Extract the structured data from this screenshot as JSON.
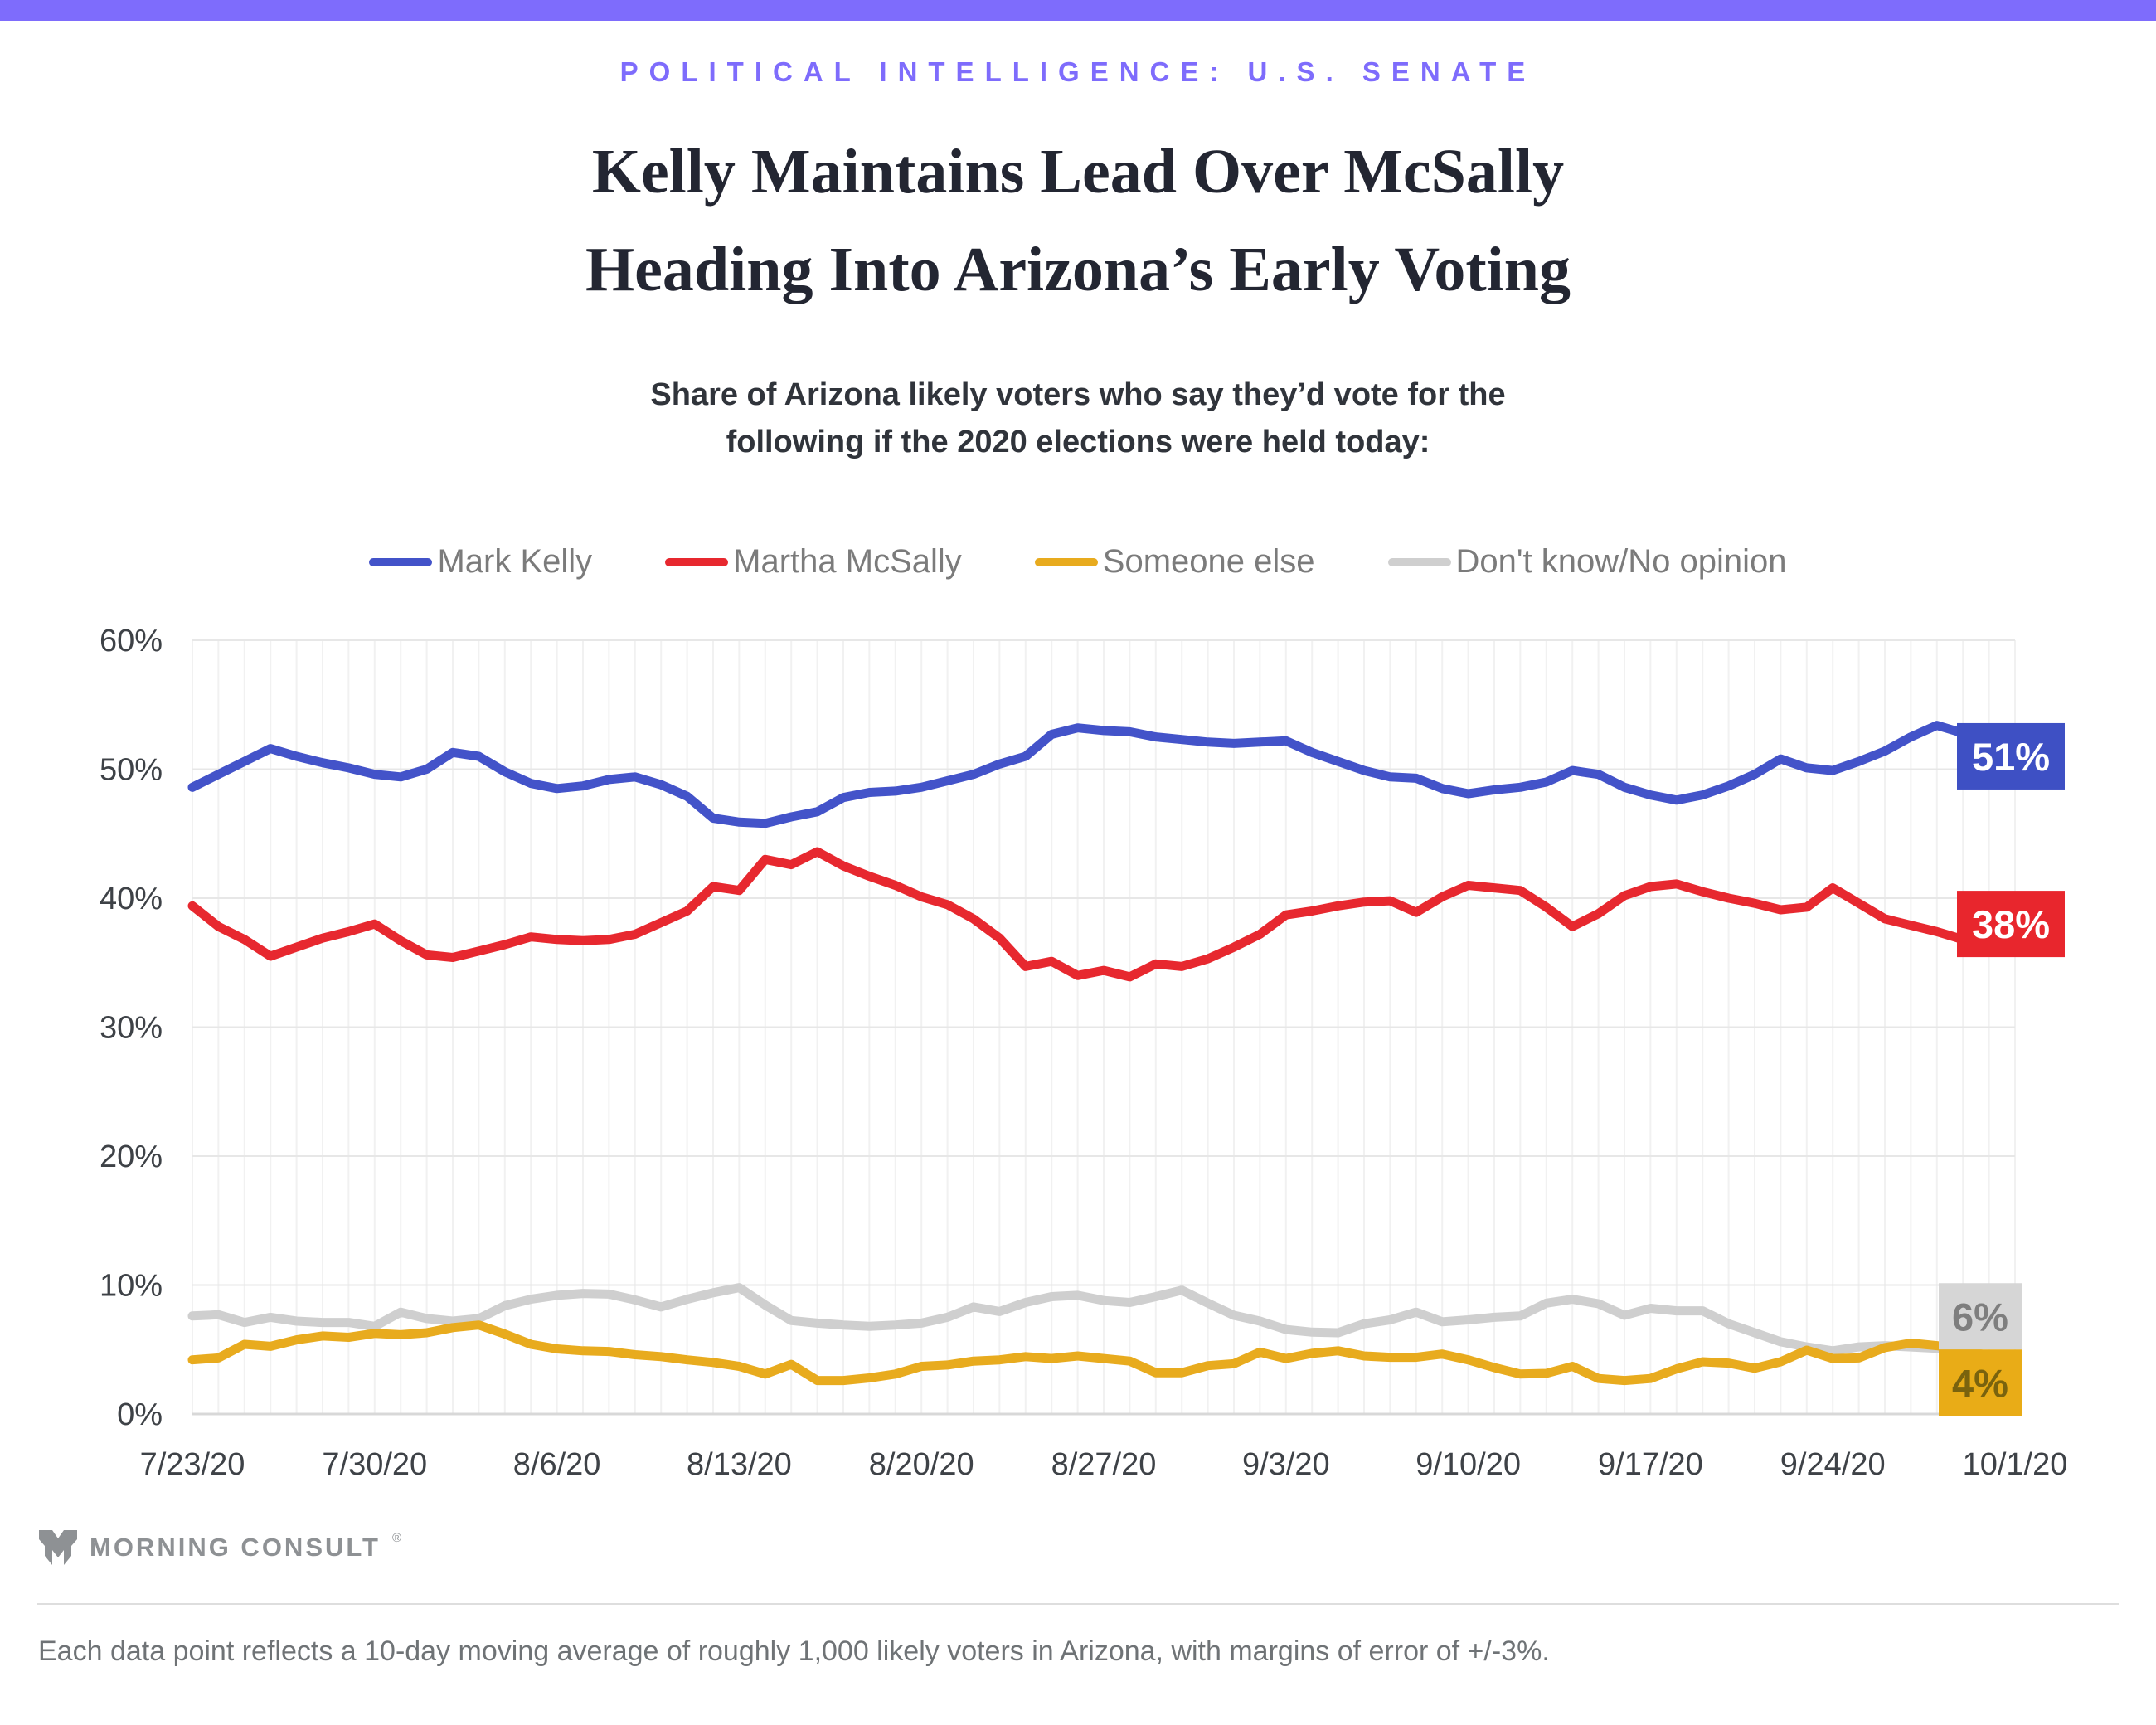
{
  "header": {
    "eyebrow": "POLITICAL INTELLIGENCE: U.S. SENATE",
    "title_line1": "Kelly Maintains Lead Over McSally",
    "title_line2": "Heading Into Arizona’s Early Voting",
    "subtitle_line1": "Share of Arizona likely voters who say they’d vote for the",
    "subtitle_line2": "following if the 2020 elections were held today:"
  },
  "colors": {
    "accent_purple": "#7E6CFC",
    "grid_h": "#E7E7E7",
    "grid_v": "#F1F1F1",
    "baseline": "#D8D8D8",
    "tick_text": "#3E4247"
  },
  "chart_data": {
    "type": "line",
    "title": "Share of Arizona likely voters who say they’d vote for the following if the 2020 elections were held today:",
    "x_start_date": "7/23/20",
    "x_end_date": "10/1/20",
    "days_total": 70,
    "ylim": [
      0,
      60
    ],
    "grid": true,
    "legend_position": "top",
    "y_ticks": [
      {
        "label": "60%",
        "value": 60
      },
      {
        "label": "50%",
        "value": 50
      },
      {
        "label": "40%",
        "value": 40
      },
      {
        "label": "30%",
        "value": 30
      },
      {
        "label": "20%",
        "value": 20
      },
      {
        "label": "10%",
        "value": 10
      },
      {
        "label": "0%",
        "value": 0
      }
    ],
    "x_ticks": [
      {
        "label": "7/23/20",
        "day": 0
      },
      {
        "label": "7/30/20",
        "day": 7
      },
      {
        "label": "8/6/20",
        "day": 14
      },
      {
        "label": "8/13/20",
        "day": 21
      },
      {
        "label": "8/20/20",
        "day": 28
      },
      {
        "label": "8/27/20",
        "day": 35
      },
      {
        "label": "9/3/20",
        "day": 42
      },
      {
        "label": "9/10/20",
        "day": 49
      },
      {
        "label": "9/17/20",
        "day": 56
      },
      {
        "label": "9/24/20",
        "day": 63
      },
      {
        "label": "10/1/20",
        "day": 70
      }
    ],
    "series": [
      {
        "id": "dont-know",
        "name": "Don't know/No opinion",
        "color": "#CFCFCF",
        "end_label": "6%",
        "end_label_bg": "#D6D6D6",
        "end_label_color": "#7E7E7E",
        "values": [
          7.6,
          7.7,
          7.1,
          7.5,
          7.2,
          7.1,
          7.1,
          6.8,
          7.9,
          7.4,
          7.2,
          7.4,
          8.4,
          8.9,
          9.2,
          9.35,
          9.3,
          8.85,
          8.3,
          8.9,
          9.4,
          9.8,
          8.45,
          7.25,
          7.05,
          6.9,
          6.8,
          6.9,
          7.05,
          7.5,
          8.3,
          7.95,
          8.65,
          9.1,
          9.2,
          8.8,
          8.65,
          9.1,
          9.6,
          8.6,
          7.65,
          7.2,
          6.55,
          6.35,
          6.3,
          7.0,
          7.3,
          7.9,
          7.15,
          7.3,
          7.5,
          7.6,
          8.6,
          8.9,
          8.55,
          7.65,
          8.2,
          8.0,
          8.0,
          7.0,
          6.3,
          5.6,
          5.2,
          4.9,
          5.2,
          5.3,
          5.2,
          5.1,
          5.2,
          5.6,
          6.0
        ]
      },
      {
        "id": "someone-else",
        "name": "Someone else",
        "color": "#E8AB1E",
        "end_label": "4%",
        "end_label_bg": "#E9AC17",
        "end_label_color": "#7A630E",
        "values": [
          4.2,
          4.35,
          5.4,
          5.25,
          5.75,
          6.05,
          5.95,
          6.25,
          6.15,
          6.3,
          6.7,
          6.9,
          6.2,
          5.4,
          5.05,
          4.9,
          4.85,
          4.6,
          4.45,
          4.2,
          4.0,
          3.7,
          3.1,
          3.85,
          2.6,
          2.6,
          2.8,
          3.1,
          3.7,
          3.8,
          4.1,
          4.2,
          4.45,
          4.3,
          4.5,
          4.3,
          4.1,
          3.2,
          3.2,
          3.75,
          3.9,
          4.8,
          4.3,
          4.7,
          4.9,
          4.5,
          4.4,
          4.4,
          4.65,
          4.2,
          3.6,
          3.1,
          3.15,
          3.7,
          2.75,
          2.6,
          2.75,
          3.5,
          4.05,
          3.95,
          3.55,
          4.05,
          4.95,
          4.3,
          4.35,
          5.15,
          5.5,
          5.3,
          5.0,
          4.5,
          4.0
        ]
      },
      {
        "id": "martha-mcsally",
        "name": "Martha McSally",
        "color": "#E7282F",
        "end_label": "38%",
        "end_label_bg": "#E8262D",
        "end_label_color": "#FFFFFF",
        "values": [
          39.4,
          37.8,
          36.8,
          35.5,
          36.2,
          36.9,
          37.4,
          38.0,
          36.7,
          35.6,
          35.4,
          35.9,
          36.4,
          37.0,
          36.8,
          36.7,
          36.8,
          37.2,
          38.1,
          39.0,
          40.9,
          40.6,
          43.0,
          42.6,
          43.6,
          42.5,
          41.7,
          41.0,
          40.1,
          39.5,
          38.4,
          36.9,
          34.7,
          35.1,
          34.0,
          34.4,
          33.9,
          34.9,
          34.7,
          35.3,
          36.2,
          37.2,
          38.7,
          39.0,
          39.4,
          39.7,
          39.8,
          38.9,
          40.1,
          41.0,
          40.8,
          40.6,
          39.3,
          37.8,
          38.8,
          40.2,
          40.9,
          41.1,
          40.5,
          40.0,
          39.6,
          39.1,
          39.3,
          40.8,
          39.6,
          38.4,
          37.9,
          37.4,
          36.8,
          37.2,
          38.0
        ]
      },
      {
        "id": "mark-kelly",
        "name": "Mark Kelly",
        "color": "#4353C9",
        "end_label": "51%",
        "end_label_bg": "#3E50C4",
        "end_label_color": "#FFFFFF",
        "values": [
          48.6,
          49.6,
          50.6,
          51.6,
          51.0,
          50.5,
          50.1,
          49.6,
          49.4,
          50.0,
          51.3,
          51.0,
          49.8,
          48.9,
          48.5,
          48.7,
          49.2,
          49.4,
          48.8,
          47.9,
          46.2,
          45.9,
          45.8,
          46.3,
          46.7,
          47.8,
          48.2,
          48.3,
          48.6,
          49.1,
          49.6,
          50.4,
          51.0,
          52.7,
          53.2,
          53.0,
          52.9,
          52.5,
          52.3,
          52.1,
          52.0,
          52.1,
          52.2,
          51.3,
          50.6,
          49.9,
          49.4,
          49.3,
          48.5,
          48.1,
          48.4,
          48.6,
          49.0,
          49.9,
          49.6,
          48.6,
          48.0,
          47.6,
          48.0,
          48.7,
          49.6,
          50.8,
          50.1,
          49.9,
          50.6,
          51.4,
          52.5,
          53.4,
          52.8,
          51.8,
          51.0
        ]
      }
    ],
    "legend_order": [
      "mark-kelly",
      "martha-mcsally",
      "someone-else",
      "dont-know"
    ]
  },
  "footer": {
    "logo_text": "MORNING CONSULT",
    "registered_mark": "®",
    "note": "Each data point reflects a 10-day moving average of roughly 1,000 likely voters in Arizona, with margins of error of +/-3%."
  }
}
